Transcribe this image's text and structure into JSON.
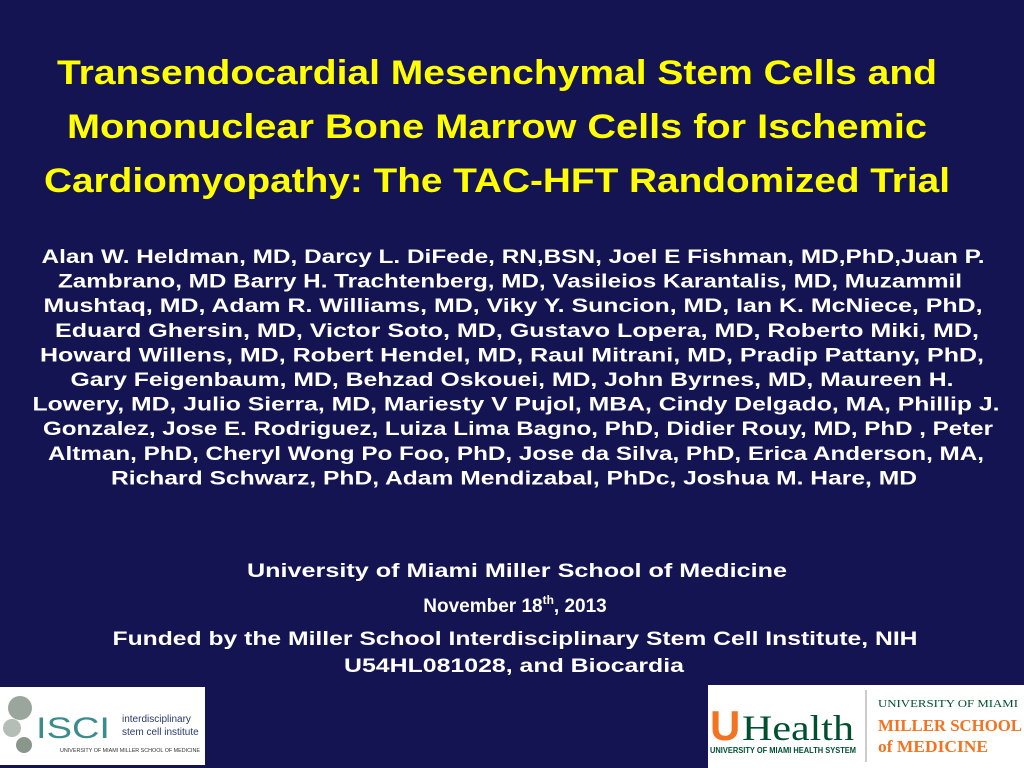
{
  "title": {
    "lines": [
      "Transendocardial Mesenchymal Stem Cells and",
      "Mononuclear Bone Marrow Cells for Ischemic",
      "Cardiomyopathy: The TAC-HFT Randomized Trial"
    ]
  },
  "authors": {
    "lines": [
      "Alan W. Heldman, MD, Darcy L. DiFede, RN,BSN, Joel E Fishman, MD,PhD,Juan P.",
      "Zambrano, MD Barry H. Trachtenberg, MD, Vasileios Karantalis, MD, Muzammil",
      "Mushtaq, MD, Adam R. Williams, MD, Viky Y. Suncion, MD, Ian K. McNiece, PhD,",
      "Eduard Ghersin, MD,  Victor Soto, MD, Gustavo Lopera, MD, Roberto Miki, MD,",
      "Howard Willens, MD, Robert Hendel, MD, Raul Mitrani, MD, Pradip Pattany, PhD,",
      "Gary Feigenbaum, MD, Behzad Oskouei, MD, John Byrnes, MD,  Maureen H.",
      "Lowery, MD, Julio Sierra, MD, Mariesty V Pujol, MBA, Cindy Delgado, MA, Phillip J.",
      "Gonzalez, Jose E. Rodriguez, Luiza Lima Bagno, PhD, Didier Rouy, MD, PhD , Peter",
      "Altman, PhD, Cheryl Wong Po Foo, PhD, Jose da Silva, PhD, Erica Anderson, MA,",
      "Richard Schwarz, PhD, Adam Mendizabal, PhDc, Joshua M. Hare, MD"
    ]
  },
  "affiliation": "University of Miami Miller School of Medicine",
  "date": {
    "before": "November 18",
    "sup": "th",
    "after": ", 2013"
  },
  "funding": {
    "lines": [
      "Funded by the Miller School Interdisciplinary Stem Cell Institute, NIH",
      "U54HL081028, and Biocardia"
    ]
  },
  "logos": {
    "isci": {
      "mark": "ISCI",
      "line1": "interdisciplinary",
      "line2": "stem cell institute",
      "footer": "UNIVERSITY OF MIAMI MILLER SCHOOL OF MEDICINE"
    },
    "uhealth": {
      "u": "U",
      "health": "Health",
      "footer": "UNIVERSITY OF MIAMI HEALTH SYSTEM"
    },
    "miller": {
      "line1": "UNIVERSITY OF MIAMI",
      "line2": "MILLER SCHOOL",
      "line3": "of MEDICINE"
    }
  }
}
